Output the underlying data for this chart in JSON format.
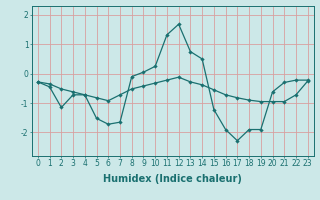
{
  "xlabel": "Humidex (Indice chaleur)",
  "bg_color": "#cce8e8",
  "grid_color": "#d8a0a0",
  "line_color": "#1a7070",
  "xlim": [
    -0.5,
    23.5
  ],
  "ylim": [
    -2.8,
    2.3
  ],
  "xticks": [
    0,
    1,
    2,
    3,
    4,
    5,
    6,
    7,
    8,
    9,
    10,
    11,
    12,
    13,
    14,
    15,
    16,
    17,
    18,
    19,
    20,
    21,
    22,
    23
  ],
  "yticks": [
    -2,
    -1,
    0,
    1,
    2
  ],
  "line1_x": [
    0,
    1,
    2,
    3,
    4,
    5,
    6,
    7,
    8,
    9,
    10,
    11,
    12,
    13,
    14,
    15,
    16,
    17,
    18,
    19,
    20,
    21,
    22,
    23
  ],
  "line1_y": [
    -0.28,
    -0.35,
    -0.52,
    -0.62,
    -0.72,
    -0.82,
    -0.92,
    -0.72,
    -0.52,
    -0.42,
    -0.32,
    -0.22,
    -0.12,
    -0.28,
    -0.38,
    -0.55,
    -0.72,
    -0.82,
    -0.9,
    -0.95,
    -0.95,
    -0.95,
    -0.72,
    -0.25
  ],
  "line2_x": [
    0,
    1,
    2,
    3,
    4,
    5,
    6,
    7,
    8,
    9,
    10,
    11,
    12,
    13,
    14,
    15,
    16,
    17,
    18,
    19,
    20,
    21,
    22,
    23
  ],
  "line2_y": [
    -0.28,
    -0.45,
    -1.15,
    -0.72,
    -0.72,
    -1.52,
    -1.72,
    -1.65,
    -0.1,
    0.05,
    0.25,
    1.32,
    1.68,
    0.75,
    0.5,
    -1.22,
    -1.9,
    -2.28,
    -1.9,
    -1.9,
    -0.62,
    -0.3,
    -0.22,
    -0.22
  ],
  "fontsize_label": 7,
  "fontsize_tick": 5.5
}
